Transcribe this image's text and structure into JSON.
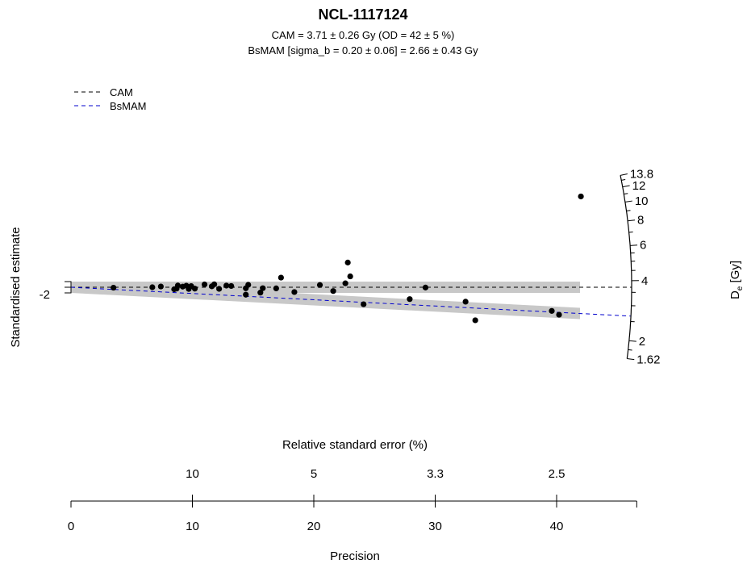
{
  "chart_data": {
    "type": "radial",
    "title": "NCL-1117124",
    "subtitle_lines": [
      "CAM = 3.71 ± 0.26 Gy (OD = 42 ± 5 %)",
      "BsMAM [sigma_b = 0.20 ± 0.06] = 2.66 ± 0.43 Gy"
    ],
    "ylabel": "Standardised estimate",
    "y_tick_label": "-2",
    "xlabel_top": "Relative standard error (%)",
    "xlabel_bottom": "Precision",
    "z_label_main": "D",
    "z_label_sub": "e",
    "z_label_unit": "[Gy]",
    "precision_ticks": [
      0,
      10,
      20,
      30,
      40
    ],
    "precision_range": [
      0,
      46.6
    ],
    "rse_ticks": [
      {
        "label": "10",
        "precision": 10
      },
      {
        "label": "5",
        "precision": 20
      },
      {
        "label": "3.3",
        "precision": 30
      },
      {
        "label": "2.5",
        "precision": 40
      }
    ],
    "z_ticks_labeled": [
      1.62,
      2,
      4,
      6,
      8,
      10,
      12,
      13.8
    ],
    "z_ticks_minor": [
      1.8,
      2.5,
      3,
      3.5,
      4.5,
      5,
      5.5,
      7,
      9,
      11,
      13
    ],
    "z_range": [
      1.62,
      13.8
    ],
    "cam_De": 3.71,
    "bsmam_De": 2.66,
    "legend": {
      "position": "top-left",
      "entries": [
        {
          "label": "CAM",
          "color": "#000000",
          "dash": "dashed"
        },
        {
          "label": "BsMAM",
          "color": "#0000cc",
          "dash": "dashed"
        }
      ]
    },
    "band_color": "#c8c8c8",
    "points": [
      {
        "precision": 3.5,
        "De": 3.46
      },
      {
        "precision": 6.7,
        "De": 3.71
      },
      {
        "precision": 7.4,
        "De": 3.92
      },
      {
        "precision": 8.5,
        "De": 3.27
      },
      {
        "precision": 8.7,
        "De": 3.41
      },
      {
        "precision": 8.8,
        "De": 4.11
      },
      {
        "precision": 9.2,
        "De": 3.84
      },
      {
        "precision": 9.5,
        "De": 4.05
      },
      {
        "precision": 9.7,
        "De": 3.38
      },
      {
        "precision": 9.9,
        "De": 3.95
      },
      {
        "precision": 10.2,
        "De": 3.45
      },
      {
        "precision": 11.0,
        "De": 4.25
      },
      {
        "precision": 11.6,
        "De": 3.87
      },
      {
        "precision": 11.8,
        "De": 4.23
      },
      {
        "precision": 12.2,
        "De": 3.46
      },
      {
        "precision": 12.8,
        "De": 3.97
      },
      {
        "precision": 13.2,
        "De": 3.9
      },
      {
        "precision": 14.4,
        "De": 2.82
      },
      {
        "precision": 14.4,
        "De": 3.57
      },
      {
        "precision": 14.6,
        "De": 4.05
      },
      {
        "precision": 15.6,
        "De": 3.09
      },
      {
        "precision": 15.8,
        "De": 3.59
      },
      {
        "precision": 16.9,
        "De": 3.58
      },
      {
        "precision": 17.3,
        "De": 4.99
      },
      {
        "precision": 18.4,
        "De": 3.23
      },
      {
        "precision": 20.5,
        "De": 3.93
      },
      {
        "precision": 21.6,
        "De": 3.38
      },
      {
        "precision": 22.6,
        "De": 4.07
      },
      {
        "precision": 22.8,
        "De": 6.6
      },
      {
        "precision": 23.0,
        "De": 4.77
      },
      {
        "precision": 24.1,
        "De": 2.55
      },
      {
        "precision": 27.9,
        "De": 2.96
      },
      {
        "precision": 29.2,
        "De": 3.69
      },
      {
        "precision": 32.5,
        "De": 2.93
      },
      {
        "precision": 33.3,
        "De": 2.19
      },
      {
        "precision": 39.6,
        "De": 2.7
      },
      {
        "precision": 40.2,
        "De": 2.58
      },
      {
        "precision": 42.0,
        "De": 11.7
      }
    ]
  }
}
